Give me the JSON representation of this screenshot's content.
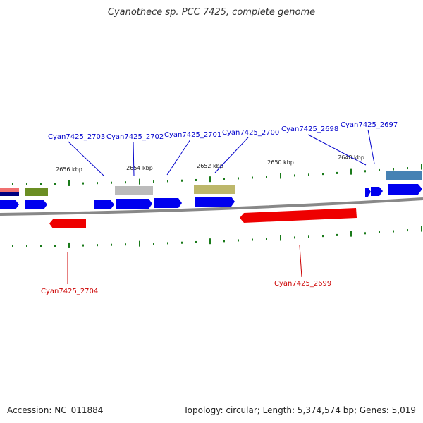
{
  "title": "Cyanothece sp. PCC 7425, complete genome",
  "footer": {
    "accession": "Accession: NC_011884",
    "summary": "Topology: circular; Length: 5,374,574 bp; Genes: 5,019"
  },
  "ruler_labels": [
    "2656 kbp",
    "2654 kbp",
    "2652 kbp",
    "2650 kbp",
    "2648 kbp"
  ],
  "gene_labels": [
    {
      "text": "Cyan7425_2703",
      "strand": "forward"
    },
    {
      "text": "Cyan7425_2702",
      "strand": "forward"
    },
    {
      "text": "Cyan7425_2701",
      "strand": "forward"
    },
    {
      "text": "Cyan7425_2700",
      "strand": "forward"
    },
    {
      "text": "Cyan7425_2698",
      "strand": "forward"
    },
    {
      "text": "Cyan7425_2697",
      "strand": "forward"
    },
    {
      "text": "Cyan7425_2704",
      "strand": "reverse"
    },
    {
      "text": "Cyan7425_2699",
      "strand": "reverse"
    }
  ],
  "colors": {
    "forward_gene": "#0000ee",
    "reverse_gene": "#ee0000",
    "backbone": "#888888",
    "tick": "#1a7a1a",
    "feature_salmon": "#f07070",
    "feature_olive": "#6b8e23",
    "feature_gray": "#bbbbbb",
    "feature_khaki": "#bdb76b",
    "feature_steelblue": "#4682b4"
  }
}
